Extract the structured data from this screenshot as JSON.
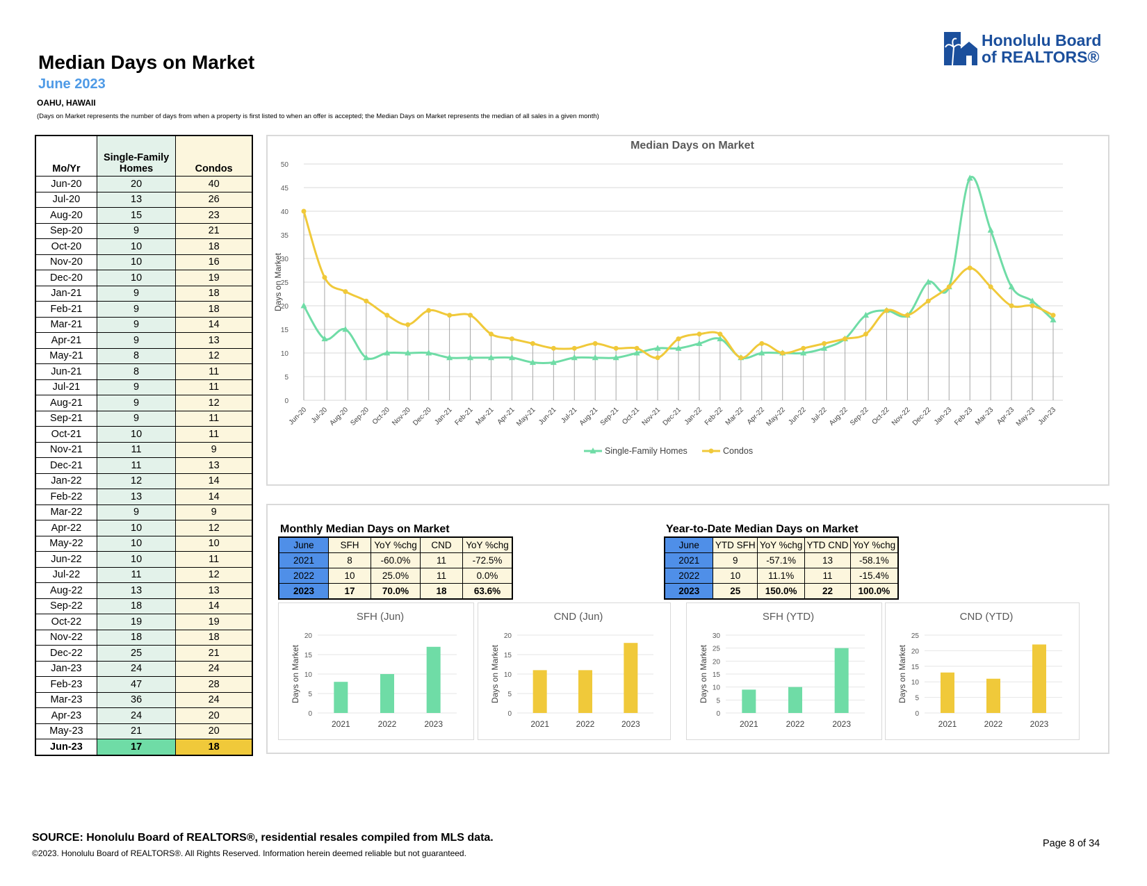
{
  "header": {
    "title": "Median Days on Market",
    "subtitle": "June 2023",
    "location": "OAHU, HAWAII",
    "note": "(Days on Market represents the number of days from when a property is first listed to when an offer is accepted; the Median Days on Market represents the median of all sales in a given month)"
  },
  "logo": {
    "line1": "Honolulu Board",
    "line2": "of REALTORS®"
  },
  "history_table": {
    "headers": [
      "Mo/Yr",
      "Single-Family Homes",
      "Condos"
    ],
    "header_sfh_line1": "Single-Family",
    "header_sfh_line2": "Homes"
  },
  "monthly": {
    "title": "Monthly Median Days on Market",
    "headers": [
      "June",
      "SFH",
      "YoY %chg",
      "CND",
      "YoY %chg"
    ],
    "rows": [
      [
        "2021",
        "8",
        "-60.0%",
        "11",
        "-72.5%"
      ],
      [
        "2022",
        "10",
        "25.0%",
        "11",
        "0.0%"
      ],
      [
        "2023",
        "17",
        "70.0%",
        "18",
        "63.6%"
      ]
    ]
  },
  "ytd": {
    "title": "Year-to-Date Median Days on Market",
    "headers": [
      "June",
      "YTD SFH",
      "YoY %chg",
      "YTD CND",
      "YoY %chg"
    ],
    "rows": [
      [
        "2021",
        "9",
        "-57.1%",
        "13",
        "-58.1%"
      ],
      [
        "2022",
        "10",
        "11.1%",
        "11",
        "-15.4%"
      ],
      [
        "2023",
        "25",
        "150.0%",
        "22",
        "100.0%"
      ]
    ]
  },
  "footer": {
    "source": "SOURCE: Honolulu Board of REALTORS®, residential resales compiled from MLS data.",
    "copyright": "©2023. Honolulu Board of REALTORS®. All Rights Reserved. Information herein deemed reliable but not guaranteed.",
    "page": "Page 8 of 34"
  },
  "colors": {
    "sfh": "#6fdca6",
    "condo": "#f0c93a",
    "accent_blue": "#4e9ae6",
    "table_blue": "#4f8fe8"
  },
  "chart_data": [
    {
      "type": "line",
      "title": "Median Days on Market",
      "ylabel": "Days on Market",
      "ylim": [
        0,
        50
      ],
      "yticks": [
        0,
        5,
        10,
        15,
        20,
        25,
        30,
        35,
        40,
        45,
        50
      ],
      "grid": true,
      "legend": "bottom",
      "categories": [
        "Jun-20",
        "Jul-20",
        "Aug-20",
        "Sep-20",
        "Oct-20",
        "Nov-20",
        "Dec-20",
        "Jan-21",
        "Feb-21",
        "Mar-21",
        "Apr-21",
        "May-21",
        "Jun-21",
        "Jul-21",
        "Aug-21",
        "Sep-21",
        "Oct-21",
        "Nov-21",
        "Dec-21",
        "Jan-22",
        "Feb-22",
        "Mar-22",
        "Apr-22",
        "May-22",
        "Jun-22",
        "Jul-22",
        "Aug-22",
        "Sep-22",
        "Oct-22",
        "Nov-22",
        "Dec-22",
        "Jan-23",
        "Feb-23",
        "Mar-23",
        "Apr-23",
        "May-23",
        "Jun-23"
      ],
      "series": [
        {
          "name": "Single-Family Homes",
          "values": [
            20,
            13,
            15,
            9,
            10,
            10,
            10,
            9,
            9,
            9,
            9,
            8,
            8,
            9,
            9,
            9,
            10,
            11,
            11,
            12,
            13,
            9,
            10,
            10,
            10,
            11,
            13,
            18,
            19,
            18,
            25,
            24,
            47,
            36,
            24,
            21,
            17
          ]
        },
        {
          "name": "Condos",
          "values": [
            40,
            26,
            23,
            21,
            18,
            16,
            19,
            18,
            18,
            14,
            13,
            12,
            11,
            11,
            12,
            11,
            11,
            9,
            13,
            14,
            14,
            9,
            12,
            10,
            11,
            12,
            13,
            14,
            19,
            18,
            21,
            24,
            28,
            24,
            20,
            20,
            18
          ]
        }
      ]
    },
    {
      "type": "bar",
      "title": "SFH (Jun)",
      "ylabel": "Days on Market",
      "categories": [
        "2021",
        "2022",
        "2023"
      ],
      "values": [
        8,
        10,
        17
      ],
      "ylim": [
        0,
        20
      ],
      "yticks": [
        0,
        5,
        10,
        15,
        20
      ]
    },
    {
      "type": "bar",
      "title": "CND (Jun)",
      "ylabel": "Days on Market",
      "categories": [
        "2021",
        "2022",
        "2023"
      ],
      "values": [
        11,
        11,
        18
      ],
      "ylim": [
        0,
        20
      ],
      "yticks": [
        0,
        5,
        10,
        15,
        20
      ]
    },
    {
      "type": "bar",
      "title": "SFH (YTD)",
      "ylabel": "Days on Market",
      "categories": [
        "2021",
        "2022",
        "2023"
      ],
      "values": [
        9,
        10,
        25
      ],
      "ylim": [
        0,
        30
      ],
      "yticks": [
        0,
        5,
        10,
        15,
        20,
        25,
        30
      ]
    },
    {
      "type": "bar",
      "title": "CND (YTD)",
      "ylabel": "Days on Market",
      "categories": [
        "2021",
        "2022",
        "2023"
      ],
      "values": [
        13,
        11,
        22
      ],
      "ylim": [
        0,
        25
      ],
      "yticks": [
        0,
        5,
        10,
        15,
        20,
        25
      ]
    }
  ]
}
